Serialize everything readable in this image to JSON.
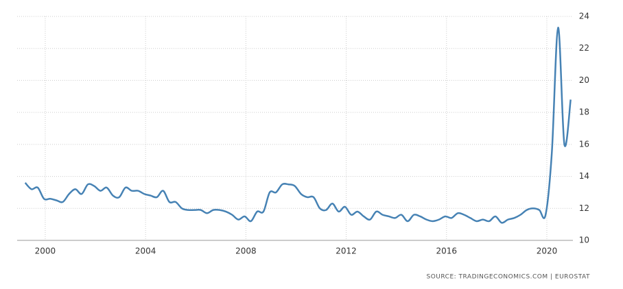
{
  "chart_data": {
    "type": "line",
    "source": "SOURCE: TRADINGECONOMICS.COM  |  EUROSTAT",
    "x": [
      1999.2,
      1999.45,
      1999.7,
      1999.95,
      2000.2,
      2000.45,
      2000.7,
      2000.95,
      2001.2,
      2001.45,
      2001.7,
      2001.95,
      2002.2,
      2002.45,
      2002.7,
      2002.95,
      2003.2,
      2003.45,
      2003.7,
      2003.95,
      2004.2,
      2004.45,
      2004.7,
      2004.95,
      2005.2,
      2005.45,
      2005.7,
      2005.95,
      2006.2,
      2006.45,
      2006.7,
      2006.95,
      2007.2,
      2007.45,
      2007.7,
      2007.95,
      2008.2,
      2008.45,
      2008.7,
      2008.95,
      2009.2,
      2009.45,
      2009.7,
      2009.95,
      2010.2,
      2010.45,
      2010.7,
      2010.95,
      2011.2,
      2011.45,
      2011.7,
      2011.95,
      2012.2,
      2012.45,
      2012.7,
      2012.95,
      2013.2,
      2013.45,
      2013.7,
      2013.95,
      2014.2,
      2014.45,
      2014.7,
      2014.95,
      2015.2,
      2015.45,
      2015.7,
      2015.95,
      2016.2,
      2016.45,
      2016.7,
      2016.95,
      2017.2,
      2017.45,
      2017.7,
      2017.95,
      2018.2,
      2018.45,
      2018.7,
      2018.95,
      2019.2,
      2019.45,
      2019.7,
      2019.95,
      2020.2,
      2020.45,
      2020.7,
      2020.95
    ],
    "series": [
      {
        "color": "#4682b4",
        "values": [
          13.6,
          13.2,
          13.3,
          12.6,
          12.6,
          12.5,
          12.4,
          12.9,
          13.2,
          12.9,
          13.5,
          13.4,
          13.1,
          13.3,
          12.8,
          12.7,
          13.3,
          13.1,
          13.1,
          12.9,
          12.8,
          12.7,
          13.1,
          12.4,
          12.4,
          12.0,
          11.9,
          11.9,
          11.9,
          11.7,
          11.9,
          11.9,
          11.8,
          11.6,
          11.3,
          11.5,
          11.2,
          11.8,
          11.8,
          13.0,
          13.0,
          13.5,
          13.5,
          13.4,
          12.9,
          12.7,
          12.7,
          12.0,
          11.9,
          12.3,
          11.8,
          12.1,
          11.6,
          11.8,
          11.5,
          11.3,
          11.8,
          11.6,
          11.5,
          11.4,
          11.6,
          11.2,
          11.6,
          11.5,
          11.3,
          11.2,
          11.3,
          11.5,
          11.4,
          11.7,
          11.6,
          11.4,
          11.2,
          11.3,
          11.2,
          11.5,
          11.1,
          11.3,
          11.4,
          11.6,
          11.9,
          12.0,
          11.9,
          11.6,
          15.5,
          23.3,
          16.0,
          18.8
        ]
      }
    ],
    "xlim": [
      1998.88,
      2021.04
    ],
    "xticks": [
      2000,
      2004,
      2008,
      2012,
      2016,
      2020
    ],
    "ylim": [
      10,
      24
    ],
    "yticks": [
      10,
      12,
      14,
      16,
      18,
      20,
      22,
      24
    ],
    "grid": true
  }
}
